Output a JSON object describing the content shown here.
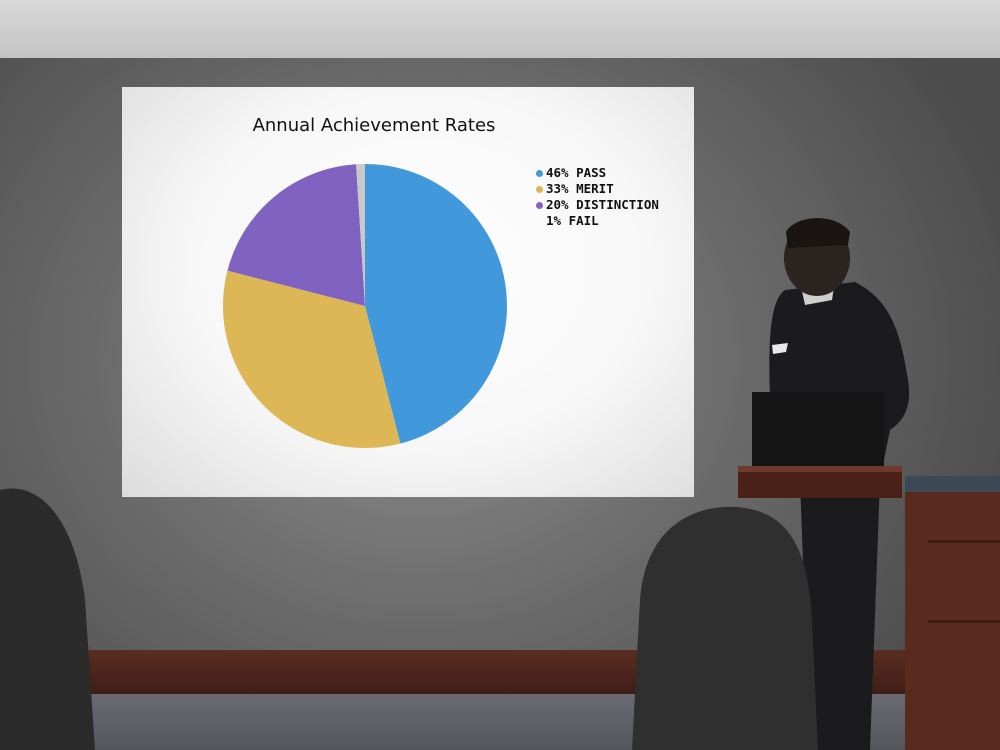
{
  "chart_data": {
    "type": "pie",
    "title": "Annual Achievement Rates",
    "slices": [
      {
        "label": "46% PASS",
        "value": 46,
        "color": "#4199db"
      },
      {
        "label": "33% MERIT",
        "value": 33,
        "color": "#ddb655"
      },
      {
        "label": "20% DISTINCTION",
        "value": 20,
        "color": "#8063c0"
      },
      {
        "label": "1% FAIL",
        "value": 1,
        "color": "#c9c9c9"
      }
    ],
    "legend_position": "right"
  }
}
